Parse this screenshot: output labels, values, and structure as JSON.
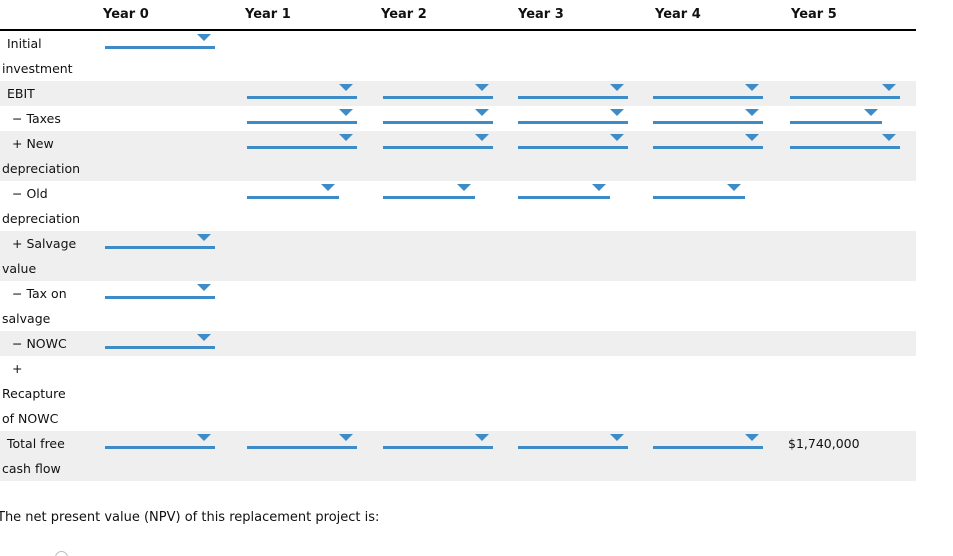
{
  "colors": {
    "accent_blue": "#3e8cc7",
    "row_shade": "#efefef",
    "header_line": "#000000",
    "radio_border": "#bbbbbb"
  },
  "table": {
    "columns": [
      "",
      "Year 0",
      "Year 1",
      "Year 2",
      "Year 3",
      "Year 4",
      "Year 5"
    ],
    "rows": [
      {
        "label_lines": [
          "Initial",
          "investment"
        ],
        "shaded": false,
        "dropdowns": [
          "n",
          null,
          null,
          null,
          null,
          null
        ]
      },
      {
        "label_lines": [
          "EBIT"
        ],
        "shaded": true,
        "dropdowns": [
          null,
          "n",
          "n",
          "n",
          "n",
          "n"
        ]
      },
      {
        "label_lines": [
          "− Taxes"
        ],
        "shaded": false,
        "dropdowns": [
          null,
          "n",
          "n",
          "n",
          "n",
          "s"
        ]
      },
      {
        "label_lines": [
          "+ New",
          "depreciation"
        ],
        "shaded": true,
        "dropdowns": [
          null,
          "n",
          "n",
          "n",
          "n",
          "n"
        ]
      },
      {
        "label_lines": [
          "− Old",
          "depreciation"
        ],
        "shaded": false,
        "dropdowns": [
          null,
          "s",
          "s",
          "s",
          "s",
          null
        ]
      },
      {
        "label_lines": [
          "+ Salvage",
          "value"
        ],
        "shaded": true,
        "dropdowns": [
          "n",
          null,
          null,
          null,
          null,
          null
        ]
      },
      {
        "label_lines": [
          "− Tax on",
          "salvage"
        ],
        "shaded": false,
        "dropdowns": [
          "n",
          null,
          null,
          null,
          null,
          null
        ]
      },
      {
        "label_lines": [
          "− NOWC"
        ],
        "shaded": true,
        "dropdowns": [
          "n",
          null,
          null,
          null,
          null,
          null
        ]
      },
      {
        "label_lines": [
          "+",
          "Recapture",
          "of NOWC"
        ],
        "shaded": false,
        "dropdowns": [
          null,
          null,
          null,
          null,
          null,
          null
        ]
      },
      {
        "label_lines": [
          "Total free",
          "cash flow"
        ],
        "shaded": true,
        "dropdowns": [
          "n",
          "n",
          "n",
          "n",
          "n",
          null
        ],
        "values": [
          null,
          null,
          null,
          null,
          null,
          "$1,740,000"
        ]
      }
    ]
  },
  "footer": {
    "npv_prompt": "The net present value (NPV) of this replacement project is:"
  }
}
